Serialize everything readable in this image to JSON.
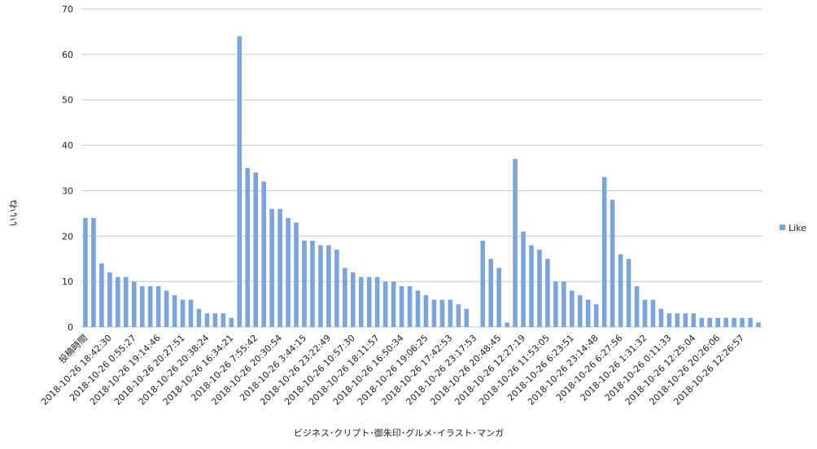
{
  "chart_data": {
    "type": "bar",
    "y_label": "いいね",
    "x_label": "ビジネス･クリプト･御朱印･グルメ･イラスト･マンガ",
    "categories": [
      "投稿時間",
      null,
      null,
      "2018-10-26 18:42:30",
      null,
      null,
      "2018-10-26 0:55:27",
      null,
      null,
      "2018-10-26 19:14:46",
      null,
      null,
      "2018-10-26 20:27:51",
      null,
      null,
      "2018-10-26 20:38:24",
      null,
      null,
      "2018-10-26 16:34:21",
      null,
      null,
      "2018-10-26 7:55:42",
      null,
      null,
      "2018-10-26 20:30:54",
      null,
      null,
      "2018-10-26 3:44:15",
      null,
      null,
      "2018-10-26 23:22:49",
      null,
      null,
      "2018-10-26 10:57:30",
      null,
      null,
      "2018-10-26 18:11:57",
      null,
      null,
      "2018-10-26 16:50:34",
      null,
      null,
      "2018-10-26 19:06:25",
      null,
      null,
      "2018-10-26 17:42:53",
      null,
      null,
      "2018-10-26 23:17:53",
      null,
      null,
      "2018-10-26 20:48:45",
      null,
      null,
      "2018-10-26 12:27:19",
      null,
      null,
      "2018-10-26 11:53:05",
      null,
      null,
      "2018-10-26 6:23:51",
      null,
      null,
      "2018-10-26 23:14:48",
      null,
      null,
      "2018-10-26 6:27:56",
      null,
      null,
      "2018-10-26 1:31:32",
      null,
      null,
      "2018-10-26 0:11:33",
      null,
      null,
      "2018-10-26 12:25:04",
      null,
      null,
      "2018-10-26 20:26:06",
      null,
      null,
      "2018-10-26 12:26:57",
      null,
      null
    ],
    "series": [
      {
        "name": "Like",
        "color": "#7ba3dc",
        "values": [
          24,
          24,
          14,
          12,
          11,
          11,
          10,
          9,
          9,
          9,
          8,
          7,
          6,
          6,
          4,
          3,
          3,
          3,
          2,
          64,
          35,
          34,
          32,
          26,
          26,
          24,
          23,
          19,
          19,
          18,
          18,
          17,
          13,
          12,
          11,
          11,
          11,
          10,
          10,
          9,
          9,
          8,
          7,
          6,
          6,
          6,
          5,
          4,
          null,
          19,
          15,
          13,
          1,
          37,
          21,
          18,
          17,
          15,
          10,
          10,
          8,
          7,
          6,
          5,
          33,
          28,
          16,
          15,
          9,
          6,
          6,
          4,
          3,
          3,
          3,
          3,
          2,
          2,
          2,
          2,
          2,
          2,
          2,
          1
        ]
      }
    ],
    "ylim": [
      0,
      70
    ],
    "yticks": [
      0,
      10,
      20,
      30,
      40,
      50,
      60,
      70
    ],
    "grid": true,
    "legend": "right"
  }
}
